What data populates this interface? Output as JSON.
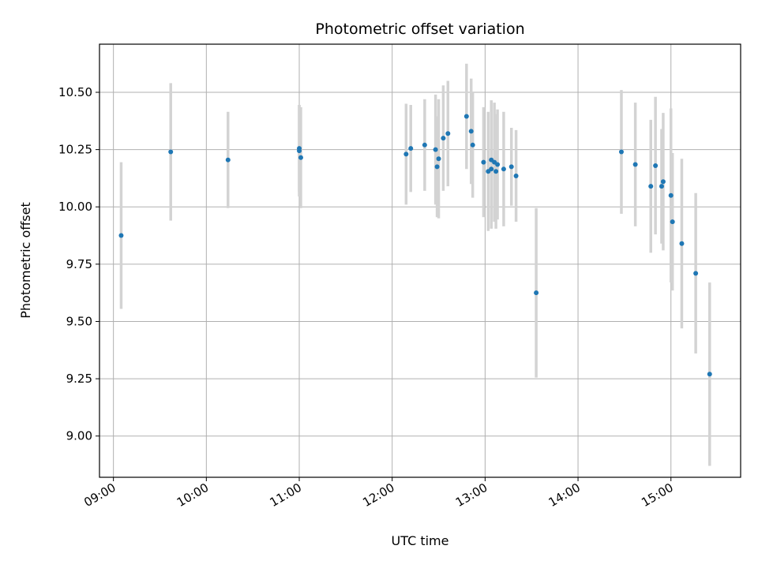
{
  "chart_data": {
    "type": "scatter",
    "title": "Photometric offset variation",
    "xlabel": "UTC time",
    "ylabel": "Photometric offset",
    "x_ticks": [
      "09:00",
      "10:00",
      "11:00",
      "12:00",
      "13:00",
      "14:00",
      "15:00"
    ],
    "y_ticks": [
      "9.00",
      "9.25",
      "9.50",
      "9.75",
      "10.00",
      "10.25",
      "10.50"
    ],
    "xlim": [
      "08:51",
      "15:45"
    ],
    "ylim": [
      8.82,
      10.71
    ],
    "grid": true,
    "colors": {
      "point": "#1f77b4",
      "errorbar": "#d3d3d3",
      "grid": "#b0b0b0"
    },
    "points": [
      {
        "x": "09:05",
        "y": 9.875,
        "err": 0.32
      },
      {
        "x": "09:37",
        "y": 10.24,
        "err": 0.3
      },
      {
        "x": "10:14",
        "y": 10.205,
        "err": 0.21
      },
      {
        "x": "11:00",
        "y": 10.255,
        "err": 0.19
      },
      {
        "x": "11:00",
        "y": 10.245,
        "err": 0.2
      },
      {
        "x": "11:01",
        "y": 10.215,
        "err": 0.22
      },
      {
        "x": "12:09",
        "y": 10.23,
        "err": 0.22
      },
      {
        "x": "12:12",
        "y": 10.255,
        "err": 0.19
      },
      {
        "x": "12:21",
        "y": 10.27,
        "err": 0.2
      },
      {
        "x": "12:28",
        "y": 10.25,
        "err": 0.24
      },
      {
        "x": "12:29",
        "y": 10.175,
        "err": 0.22
      },
      {
        "x": "12:30",
        "y": 10.21,
        "err": 0.26
      },
      {
        "x": "12:33",
        "y": 10.3,
        "err": 0.23
      },
      {
        "x": "12:36",
        "y": 10.32,
        "err": 0.23
      },
      {
        "x": "12:48",
        "y": 10.395,
        "err": 0.23
      },
      {
        "x": "12:51",
        "y": 10.33,
        "err": 0.23
      },
      {
        "x": "12:52",
        "y": 10.27,
        "err": 0.23
      },
      {
        "x": "12:59",
        "y": 10.195,
        "err": 0.24
      },
      {
        "x": "13:02",
        "y": 10.155,
        "err": 0.26
      },
      {
        "x": "13:04",
        "y": 10.165,
        "err": 0.26
      },
      {
        "x": "13:04",
        "y": 10.205,
        "err": 0.26
      },
      {
        "x": "13:06",
        "y": 10.195,
        "err": 0.26
      },
      {
        "x": "13:07",
        "y": 10.155,
        "err": 0.25
      },
      {
        "x": "13:08",
        "y": 10.185,
        "err": 0.24
      },
      {
        "x": "13:12",
        "y": 10.165,
        "err": 0.25
      },
      {
        "x": "13:17",
        "y": 10.175,
        "err": 0.17
      },
      {
        "x": "13:20",
        "y": 10.135,
        "err": 0.2
      },
      {
        "x": "13:33",
        "y": 9.625,
        "err": 0.37
      },
      {
        "x": "14:28",
        "y": 10.24,
        "err": 0.27
      },
      {
        "x": "14:37",
        "y": 10.185,
        "err": 0.27
      },
      {
        "x": "14:47",
        "y": 10.09,
        "err": 0.29
      },
      {
        "x": "14:50",
        "y": 10.18,
        "err": 0.3
      },
      {
        "x": "14:54",
        "y": 10.09,
        "err": 0.25
      },
      {
        "x": "14:55",
        "y": 10.11,
        "err": 0.3
      },
      {
        "x": "15:00",
        "y": 10.05,
        "err": 0.38
      },
      {
        "x": "15:01",
        "y": 9.935,
        "err": 0.3
      },
      {
        "x": "15:07",
        "y": 9.84,
        "err": 0.37
      },
      {
        "x": "15:16",
        "y": 9.71,
        "err": 0.35
      },
      {
        "x": "15:25",
        "y": 9.27,
        "err": 0.4
      }
    ]
  }
}
